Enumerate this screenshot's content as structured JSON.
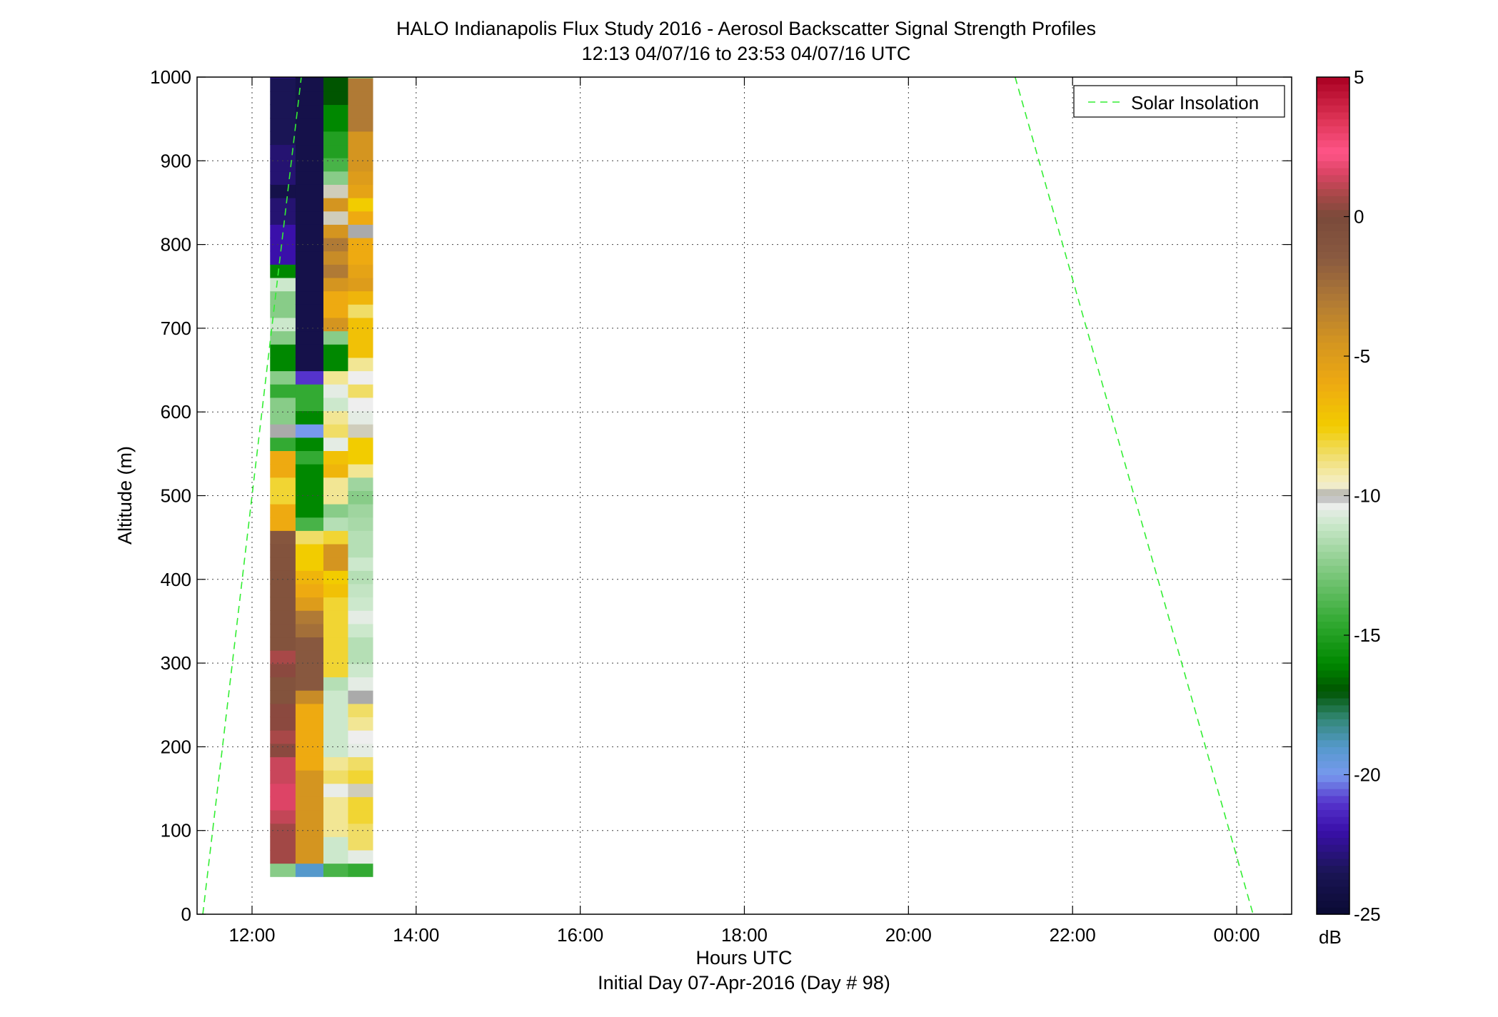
{
  "chart_data": {
    "type": "heatmap",
    "title": "HALO Indianapolis Flux Study 2016 - Aerosol Backscatter Signal Strength Profiles",
    "subtitle": "12:13 04/07/16 to 23:53 04/07/16  UTC",
    "xlabel": "Hours UTC",
    "footer": "Initial Day 07-Apr-2016 (Day # 98)",
    "ylabel": "Altitude (m)",
    "xlim": [
      11.33,
      24.67
    ],
    "ylim": [
      0,
      1000
    ],
    "grid": true,
    "x_ticks": [
      {
        "v": 12,
        "label": "12:00"
      },
      {
        "v": 14,
        "label": "14:00"
      },
      {
        "v": 16,
        "label": "16:00"
      },
      {
        "v": 18,
        "label": "18:00"
      },
      {
        "v": 20,
        "label": "20:00"
      },
      {
        "v": 22,
        "label": "22:00"
      },
      {
        "v": 24,
        "label": "00:00"
      }
    ],
    "y_ticks": [
      {
        "v": 0,
        "label": "0"
      },
      {
        "v": 100,
        "label": "100"
      },
      {
        "v": 200,
        "label": "200"
      },
      {
        "v": 300,
        "label": "300"
      },
      {
        "v": 400,
        "label": "400"
      },
      {
        "v": 500,
        "label": "500"
      },
      {
        "v": 600,
        "label": "600"
      },
      {
        "v": 700,
        "label": "700"
      },
      {
        "v": 800,
        "label": "800"
      },
      {
        "v": 900,
        "label": "900"
      },
      {
        "v": 1000,
        "label": "1000"
      }
    ],
    "legend": {
      "label": "Solar Insolation",
      "placement": "top-right",
      "line_color": "#33ee33"
    },
    "solar_insolation": {
      "morning": [
        [
          11.4,
          0
        ],
        [
          12.6,
          1000
        ]
      ],
      "evening": [
        [
          21.3,
          1000
        ],
        [
          24.2,
          0
        ]
      ]
    },
    "colorbar": {
      "unit_label": "dB",
      "min": -25,
      "max": 5,
      "ticks": [
        {
          "v": 5,
          "label": "5"
        },
        {
          "v": 0,
          "label": "0"
        },
        {
          "v": -5,
          "label": "-5"
        },
        {
          "v": -10,
          "label": "-10"
        },
        {
          "v": -15,
          "label": "-15"
        },
        {
          "v": -20,
          "label": "-20"
        },
        {
          "v": -25,
          "label": "-25"
        }
      ],
      "stops": [
        [
          -25,
          "#0a0a33"
        ],
        [
          -23.5,
          "#1a1555"
        ],
        [
          -22,
          "#3a10aa"
        ],
        [
          -21,
          "#5533cc"
        ],
        [
          -20,
          "#7799ee"
        ],
        [
          -19,
          "#5599cc"
        ],
        [
          -18,
          "#338877"
        ],
        [
          -17,
          "#005500"
        ],
        [
          -16,
          "#008800"
        ],
        [
          -14.5,
          "#33aa33"
        ],
        [
          -12.5,
          "#88cc88"
        ],
        [
          -11,
          "#cce8cc"
        ],
        [
          -10.3,
          "#eeeeee"
        ],
        [
          -10,
          "#aaaaaa"
        ],
        [
          -9.6,
          "#f5f0cc"
        ],
        [
          -8.5,
          "#f0dd66"
        ],
        [
          -7.5,
          "#f2cc00"
        ],
        [
          -6,
          "#eeaa11"
        ],
        [
          -4.5,
          "#d49520"
        ],
        [
          -3,
          "#b07a35"
        ],
        [
          -1.5,
          "#8a5a40"
        ],
        [
          0,
          "#7a4a3a"
        ],
        [
          0.8,
          "#a84848"
        ],
        [
          1.6,
          "#dd4466"
        ],
        [
          2.3,
          "#ff5588"
        ],
        [
          3.5,
          "#dd3355"
        ],
        [
          5,
          "#aa0022"
        ]
      ]
    },
    "profiles": {
      "altitude_bottom_m": 45,
      "altitude_step_m": 15.9,
      "columns": [
        {
          "t_start": 12.22,
          "t_end": 12.53,
          "values": [
            -12.5,
            0.7,
            0.7,
            0.7,
            1.2,
            1.6,
            1.6,
            1.3,
            1.3,
            0.3,
            0.8,
            0.3,
            0.3,
            -0.8,
            -0.8,
            0.3,
            0.8,
            -0.8,
            -0.8,
            -0.8,
            -0.8,
            -0.8,
            -0.8,
            -0.8,
            -0.8,
            -1.1,
            -6,
            -6,
            -8,
            -8,
            -6,
            -6,
            -14.5,
            -10,
            -12.5,
            -12.5,
            -14.5,
            -12.5,
            -16,
            -16,
            -12.5,
            -11,
            -12.5,
            -12.5,
            -11,
            -16,
            -22,
            -22,
            -22,
            -23,
            -23,
            -24,
            -23,
            -23,
            -23,
            -23.5,
            -23.5,
            -23.5,
            -23.5,
            -23.5,
            -22.5,
            -23.5,
            -23.5,
            -23.5,
            -24
          ]
        },
        {
          "t_start": 12.53,
          "t_end": 12.87,
          "values": [
            -19,
            -4.5,
            -4.5,
            -4.5,
            -4.5,
            -4.5,
            -4.5,
            -4.5,
            -6,
            -6,
            -6,
            -6,
            -6,
            -4,
            -1.3,
            -1.3,
            -1.3,
            -1.3,
            -2.5,
            -3,
            -5,
            -6,
            -6.5,
            -7.5,
            -7.5,
            -8.5,
            -14,
            -16,
            -16,
            -16,
            -16,
            -14.5,
            -16,
            -20,
            -16,
            -14.5,
            -14.5,
            -21,
            -24,
            -24,
            -24,
            -24,
            -24,
            -24,
            -24,
            -24,
            -24,
            -24,
            -24,
            -24,
            -24,
            -24,
            -24,
            -24,
            -24,
            -24,
            -24,
            -24,
            -24,
            -24,
            -24,
            -24,
            -24,
            -24,
            -24
          ]
        },
        {
          "t_start": 12.87,
          "t_end": 13.17,
          "values": [
            -14,
            -11,
            -11,
            -9,
            -9,
            -9,
            -10.4,
            -8.5,
            -9,
            -11,
            -11,
            -11,
            -11,
            -11,
            -11.5,
            -8,
            -8,
            -8,
            -8,
            -8,
            -8,
            -7,
            -7.5,
            -4.5,
            -4.5,
            -8,
            -11.5,
            -12.5,
            -9,
            -9,
            -6.5,
            -7,
            -10.5,
            -8.5,
            -9,
            -11,
            -10.5,
            -9,
            -16,
            -16,
            -12.5,
            -4.5,
            -6,
            -6,
            -4.5,
            -3,
            -4,
            -3,
            -4.5,
            -9.8,
            -4.5,
            -9.8,
            -12.5,
            -14,
            -15,
            -15,
            -16,
            -16,
            -17,
            -17,
            -17,
            -17.5,
            -18,
            -19,
            -19.5
          ]
        },
        {
          "t_start": 13.17,
          "t_end": 13.47,
          "values": [
            -14.5,
            -10.5,
            -8.5,
            -8.5,
            -8,
            -8,
            -9.8,
            -8,
            -8.5,
            -10.5,
            -10.3,
            -9,
            -8.5,
            -10,
            -10.5,
            -11,
            -11.5,
            -11.5,
            -11,
            -10.5,
            -11,
            -11.2,
            -11.5,
            -11,
            -11.5,
            -11.5,
            -11.8,
            -12,
            -12.5,
            -12,
            -9,
            -7.5,
            -7.5,
            -9.8,
            -10.5,
            -10.3,
            -8.5,
            -10.3,
            -9,
            -7,
            -7,
            -7,
            -8.5,
            -6.5,
            -5,
            -5.5,
            -6,
            -6,
            -10,
            -6,
            -7.5,
            -5.5,
            -5,
            -4.5,
            -4.5,
            -4.5,
            -3,
            -3,
            -3,
            -3,
            -12.5,
            -14,
            -16,
            -21,
            -23.5
          ]
        }
      ],
      "note": "columns omitted intentionally"
    }
  }
}
